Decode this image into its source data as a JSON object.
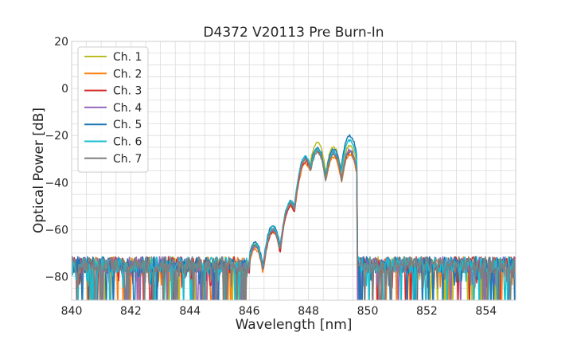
{
  "chart_data": {
    "type": "line",
    "title": "D4372 V20113 Pre Burn-In",
    "xlabel": "Wavelength [nm]",
    "ylabel": "Optical Power [dB]",
    "xlim": [
      840,
      855
    ],
    "ylim": [
      -90,
      20
    ],
    "xticks": [
      840,
      842,
      844,
      846,
      848,
      850,
      852,
      854
    ],
    "yticks": [
      20,
      0,
      -20,
      -40,
      -60,
      -80
    ],
    "grid": true,
    "legend_position": "upper-left",
    "noise_floor": {
      "from": 840,
      "to": 855,
      "mean": -75,
      "min": -90,
      "max": -68
    },
    "series": [
      {
        "name": "Ch. 1",
        "color": "#bcbd22",
        "peaks": [
          [
            846.2,
            -66
          ],
          [
            846.8,
            -60
          ],
          [
            847.4,
            -49
          ],
          [
            847.9,
            -30
          ],
          [
            848.3,
            -23
          ],
          [
            848.85,
            -25
          ],
          [
            849.4,
            -24
          ]
        ]
      },
      {
        "name": "Ch. 2",
        "color": "#ff7f0e",
        "peaks": [
          [
            846.2,
            -68
          ],
          [
            846.8,
            -61
          ],
          [
            847.4,
            -50
          ],
          [
            847.9,
            -32
          ],
          [
            848.3,
            -27
          ],
          [
            848.85,
            -29
          ],
          [
            849.4,
            -28
          ]
        ]
      },
      {
        "name": "Ch. 3",
        "color": "#d62728",
        "peaks": [
          [
            846.2,
            -67
          ],
          [
            846.8,
            -61
          ],
          [
            847.4,
            -50
          ],
          [
            847.9,
            -31
          ],
          [
            848.3,
            -26
          ],
          [
            848.85,
            -28
          ],
          [
            849.4,
            -27
          ]
        ]
      },
      {
        "name": "Ch. 4",
        "color": "#9467bd",
        "peaks": [
          [
            846.2,
            -67
          ],
          [
            846.8,
            -60
          ],
          [
            847.4,
            -49
          ],
          [
            847.9,
            -30
          ],
          [
            848.3,
            -26
          ],
          [
            848.85,
            -27
          ],
          [
            849.4,
            -26
          ]
        ]
      },
      {
        "name": "Ch. 5",
        "color": "#1f77b4",
        "peaks": [
          [
            846.2,
            -65
          ],
          [
            846.8,
            -58
          ],
          [
            847.4,
            -48
          ],
          [
            847.9,
            -29
          ],
          [
            848.3,
            -25
          ],
          [
            848.85,
            -26
          ],
          [
            849.4,
            -20
          ]
        ]
      },
      {
        "name": "Ch. 6",
        "color": "#17becf",
        "peaks": [
          [
            846.2,
            -66
          ],
          [
            846.8,
            -59
          ],
          [
            847.4,
            -48
          ],
          [
            847.9,
            -29
          ],
          [
            848.3,
            -26
          ],
          [
            848.85,
            -27
          ],
          [
            849.4,
            -22
          ]
        ]
      },
      {
        "name": "Ch. 7",
        "color": "#7f7f7f",
        "peaks": [
          [
            846.2,
            -67
          ],
          [
            846.8,
            -60
          ],
          [
            847.4,
            -49
          ],
          [
            847.9,
            -30
          ],
          [
            848.3,
            -27
          ],
          [
            848.85,
            -28
          ],
          [
            849.4,
            -27
          ]
        ]
      }
    ]
  }
}
